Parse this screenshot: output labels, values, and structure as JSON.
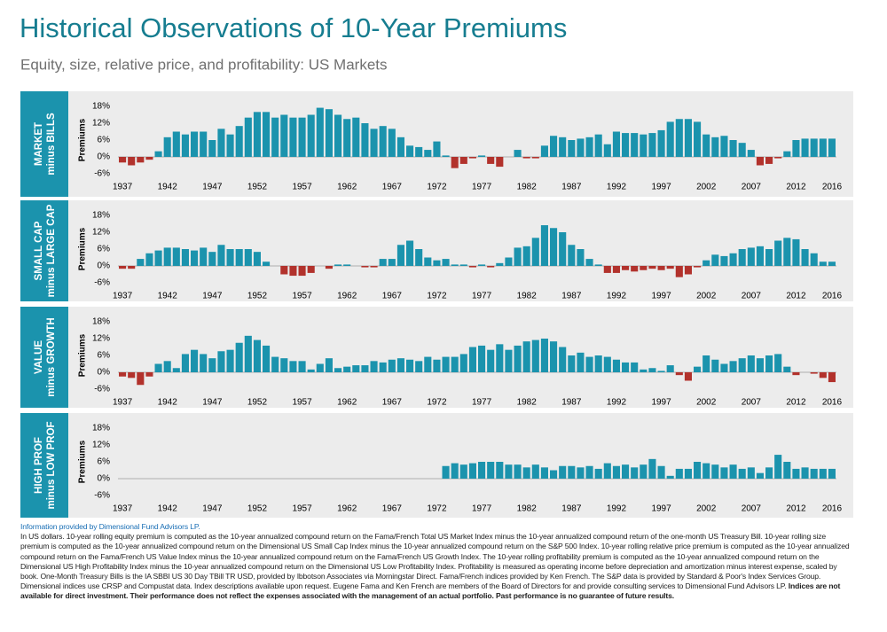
{
  "title": "Historical Observations of 10-Year Premiums",
  "subtitle": "Equity, size, relative price, and profitability: US Markets",
  "chart_data": [
    {
      "type": "bar",
      "row_label": [
        "MARKET",
        "minus BILLS"
      ],
      "y_label": "Premiums",
      "categories": [
        "1937",
        null,
        null,
        null,
        null,
        "1942",
        null,
        null,
        null,
        null,
        "1947",
        null,
        null,
        null,
        null,
        "1952",
        null,
        null,
        null,
        null,
        "1957",
        null,
        null,
        null,
        null,
        "1962",
        null,
        null,
        null,
        null,
        "1967",
        null,
        null,
        null,
        null,
        "1972",
        null,
        null,
        null,
        null,
        "1977",
        null,
        null,
        null,
        null,
        "1982",
        null,
        null,
        null,
        null,
        "1987",
        null,
        null,
        null,
        null,
        "1992",
        null,
        null,
        null,
        null,
        "1997",
        null,
        null,
        null,
        null,
        "2002",
        null,
        null,
        null,
        null,
        "2007",
        null,
        null,
        null,
        null,
        "2012",
        null,
        null,
        null,
        "2016"
      ],
      "values": [
        -2,
        -3,
        -2,
        -1,
        2,
        7,
        9,
        8,
        9,
        9,
        6,
        10,
        8,
        11,
        14,
        16,
        16,
        14,
        15,
        14,
        14,
        15,
        17.5,
        17,
        15,
        13.5,
        14,
        12,
        10,
        11,
        10,
        7,
        4,
        3.5,
        2.5,
        5.5,
        0.5,
        -4,
        -2.5,
        -0.5,
        0.5,
        -2.5,
        -3.5,
        0,
        2.5,
        -0.5,
        -0.5,
        4,
        7.5,
        7,
        6,
        6.5,
        7,
        8,
        4.5,
        9,
        8.5,
        8.5,
        8,
        8.5,
        9.5,
        12.5,
        13.5,
        13.5,
        12.5,
        8,
        7,
        7.5,
        6,
        5,
        2.5,
        -3,
        -2.5,
        -0.5,
        2,
        6,
        6.5,
        6.5,
        6.5,
        6.5
      ],
      "ylim": [
        -6,
        18
      ],
      "yticks": [
        {
          "value": -6,
          "label": "-6%"
        },
        {
          "value": 0,
          "label": "0%"
        },
        {
          "value": 6,
          "label": "6%"
        },
        {
          "value": 12,
          "label": "12%"
        },
        {
          "value": 18,
          "label": "18%"
        }
      ],
      "color": "#1b93ad",
      "negative_color": "#b2322c",
      "grid": false
    },
    {
      "type": "bar",
      "row_label": [
        "SMALL CAP",
        "minus LARGE CAP"
      ],
      "y_label": "Premiums",
      "categories": [
        "1937",
        null,
        null,
        null,
        null,
        "1942",
        null,
        null,
        null,
        null,
        "1947",
        null,
        null,
        null,
        null,
        "1952",
        null,
        null,
        null,
        null,
        "1957",
        null,
        null,
        null,
        null,
        "1962",
        null,
        null,
        null,
        null,
        "1967",
        null,
        null,
        null,
        null,
        "1972",
        null,
        null,
        null,
        null,
        "1977",
        null,
        null,
        null,
        null,
        "1982",
        null,
        null,
        null,
        null,
        "1987",
        null,
        null,
        null,
        null,
        "1992",
        null,
        null,
        null,
        null,
        "1997",
        null,
        null,
        null,
        null,
        "2002",
        null,
        null,
        null,
        null,
        "2007",
        null,
        null,
        null,
        null,
        "2012",
        null,
        null,
        null,
        "2016"
      ],
      "values": [
        -1,
        -1,
        2.5,
        4.5,
        5.5,
        6.5,
        6.5,
        6,
        5.5,
        6.5,
        5,
        7.5,
        6,
        6,
        6,
        5,
        1.5,
        0,
        -3,
        -3.5,
        -3.5,
        -2.5,
        0,
        -1,
        0.5,
        0.5,
        0,
        -0.5,
        -0.5,
        2.5,
        2.5,
        7.5,
        9,
        6,
        3,
        2,
        2.5,
        0.5,
        0.5,
        -0.5,
        0.5,
        -0.5,
        1,
        3,
        6.5,
        7,
        10,
        14.5,
        13.5,
        12,
        7.5,
        6,
        2.5,
        0.5,
        -2.5,
        -2.5,
        -1.5,
        -2,
        -1.5,
        -1,
        -1.5,
        -1,
        -4,
        -3,
        -0.5,
        2,
        4,
        3.5,
        4.5,
        6,
        6.5,
        7,
        6,
        9,
        10,
        9.5,
        6,
        4.5,
        1.5,
        1.5
      ],
      "ylim": [
        -6,
        18
      ],
      "yticks": [
        {
          "value": -6,
          "label": "-6%"
        },
        {
          "value": 0,
          "label": "0%"
        },
        {
          "value": 6,
          "label": "6%"
        },
        {
          "value": 12,
          "label": "12%"
        },
        {
          "value": 18,
          "label": "18%"
        }
      ],
      "color": "#1b93ad",
      "negative_color": "#b2322c",
      "grid": false
    },
    {
      "type": "bar",
      "row_label": [
        "VALUE",
        "minus GROWTH"
      ],
      "y_label": "Premiums",
      "categories": [
        "1937",
        null,
        null,
        null,
        null,
        "1942",
        null,
        null,
        null,
        null,
        "1947",
        null,
        null,
        null,
        null,
        "1952",
        null,
        null,
        null,
        null,
        "1957",
        null,
        null,
        null,
        null,
        "1962",
        null,
        null,
        null,
        null,
        "1967",
        null,
        null,
        null,
        null,
        "1972",
        null,
        null,
        null,
        null,
        "1977",
        null,
        null,
        null,
        null,
        "1982",
        null,
        null,
        null,
        null,
        "1987",
        null,
        null,
        null,
        null,
        "1992",
        null,
        null,
        null,
        null,
        "1997",
        null,
        null,
        null,
        null,
        "2002",
        null,
        null,
        null,
        null,
        "2007",
        null,
        null,
        null,
        null,
        "2012",
        null,
        null,
        null,
        "2016"
      ],
      "values": [
        -1.5,
        -2,
        -4.5,
        -1.5,
        3,
        4,
        1.5,
        6.5,
        8,
        6.5,
        5,
        7.5,
        8,
        10.5,
        13,
        11.5,
        9.5,
        5.5,
        5,
        4,
        4,
        1,
        3,
        5,
        1.5,
        2,
        2.5,
        2.5,
        4,
        3.5,
        4.5,
        5,
        4.5,
        4,
        5.5,
        4.5,
        5.5,
        5.5,
        6.5,
        9,
        9.5,
        8,
        10,
        8,
        9.5,
        11,
        11.5,
        12,
        11,
        9,
        6,
        7,
        5.5,
        6,
        5.5,
        4.5,
        3.5,
        3.5,
        1,
        1.5,
        0.5,
        2.5,
        -1,
        -3,
        2,
        6,
        4.5,
        3,
        4,
        5,
        6,
        5,
        6,
        6.5,
        2,
        -1,
        0,
        -0.5,
        -2,
        -3.5
      ],
      "ylim": [
        -6,
        18
      ],
      "yticks": [
        {
          "value": -6,
          "label": "-6%"
        },
        {
          "value": 0,
          "label": "0%"
        },
        {
          "value": 6,
          "label": "6%"
        },
        {
          "value": 12,
          "label": "12%"
        },
        {
          "value": 18,
          "label": "18%"
        }
      ],
      "color": "#1b93ad",
      "negative_color": "#b2322c",
      "grid": false
    },
    {
      "type": "bar",
      "row_label": [
        "HIGH PROF",
        "minus LOW PROF"
      ],
      "y_label": "Premiums",
      "categories": [
        "1937",
        null,
        null,
        null,
        null,
        "1942",
        null,
        null,
        null,
        null,
        "1947",
        null,
        null,
        null,
        null,
        "1952",
        null,
        null,
        null,
        null,
        "1957",
        null,
        null,
        null,
        null,
        "1962",
        null,
        null,
        null,
        null,
        "1967",
        null,
        null,
        null,
        null,
        "1972",
        null,
        null,
        null,
        null,
        "1977",
        null,
        null,
        null,
        null,
        "1982",
        null,
        null,
        null,
        null,
        "1987",
        null,
        null,
        null,
        null,
        "1992",
        null,
        null,
        null,
        null,
        "1997",
        null,
        null,
        null,
        null,
        "2002",
        null,
        null,
        null,
        null,
        "2007",
        null,
        null,
        null,
        null,
        "2012",
        null,
        null,
        null,
        "2016"
      ],
      "values": [
        null,
        null,
        null,
        null,
        null,
        null,
        null,
        null,
        null,
        null,
        null,
        null,
        null,
        null,
        null,
        null,
        null,
        null,
        null,
        null,
        null,
        null,
        null,
        null,
        null,
        null,
        null,
        null,
        null,
        null,
        null,
        null,
        null,
        null,
        null,
        null,
        4.5,
        5.5,
        5,
        5.5,
        6,
        6,
        6,
        5,
        5,
        4,
        5,
        4,
        3,
        4.5,
        4.5,
        4,
        4.5,
        3.5,
        5.5,
        4.5,
        5,
        4,
        5,
        7,
        4.5,
        1,
        3.5,
        3.5,
        6,
        5.5,
        5,
        4,
        5,
        3.5,
        4,
        2,
        4,
        8.5,
        6,
        3.5,
        4,
        3.5,
        3.5,
        3.5
      ],
      "ylim": [
        -6,
        18
      ],
      "yticks": [
        {
          "value": -6,
          "label": "-6%"
        },
        {
          "value": 0,
          "label": "0%"
        },
        {
          "value": 6,
          "label": "6%"
        },
        {
          "value": 12,
          "label": "12%"
        },
        {
          "value": 18,
          "label": "18%"
        }
      ],
      "color": "#1b93ad",
      "negative_color": "#b2322c",
      "grid": false
    }
  ],
  "footnote": {
    "source": "Information provided by Dimensional Fund Advisors LP.",
    "body": "In US dollars. 10-year rolling equity premium is computed as the 10-year annualized compound return on the Fama/French Total US Market Index minus the 10-year annualized compound return of the one-month US Treasury Bill. 10-year rolling size premium is computed as the 10-year annualized compound return on the Dimensional US Small Cap Index minus the 10-year annualized compound return on the S&P 500 Index. 10-year rolling relative price premium is computed as the 10-year annualized compound return on the Fama/French US Value Index minus the 10-year annualized compound return on the Fama/French US Growth Index. The 10-year rolling profitability premium is computed as the 10-year annualized compound return on the Dimensional US High Profitability Index minus the 10-year annualized compound return on the Dimensional US Low Profitability Index. Profitability is measured as operating income before depreciation and amortization minus interest expense, scaled by book. One-Month Treasury Bills is the IA SBBI US 30 Day TBill TR USD, provided by Ibbotson Associates via Morningstar Direct. Fama/French indices provided by Ken French. The S&P data is provided by Standard & Poor's Index Services Group.  Dimensional indices use CRSP and Compustat data. Index descriptions available upon request. Eugene Fama and Ken French are members of the Board of Directors for and provide consulting services to Dimensional Fund Advisors LP.",
    "disclaimer": "Indices are not available for direct investment. Their performance does not reflect the expenses associated with the management of an actual portfolio. Past performance is no guarantee of future results."
  }
}
